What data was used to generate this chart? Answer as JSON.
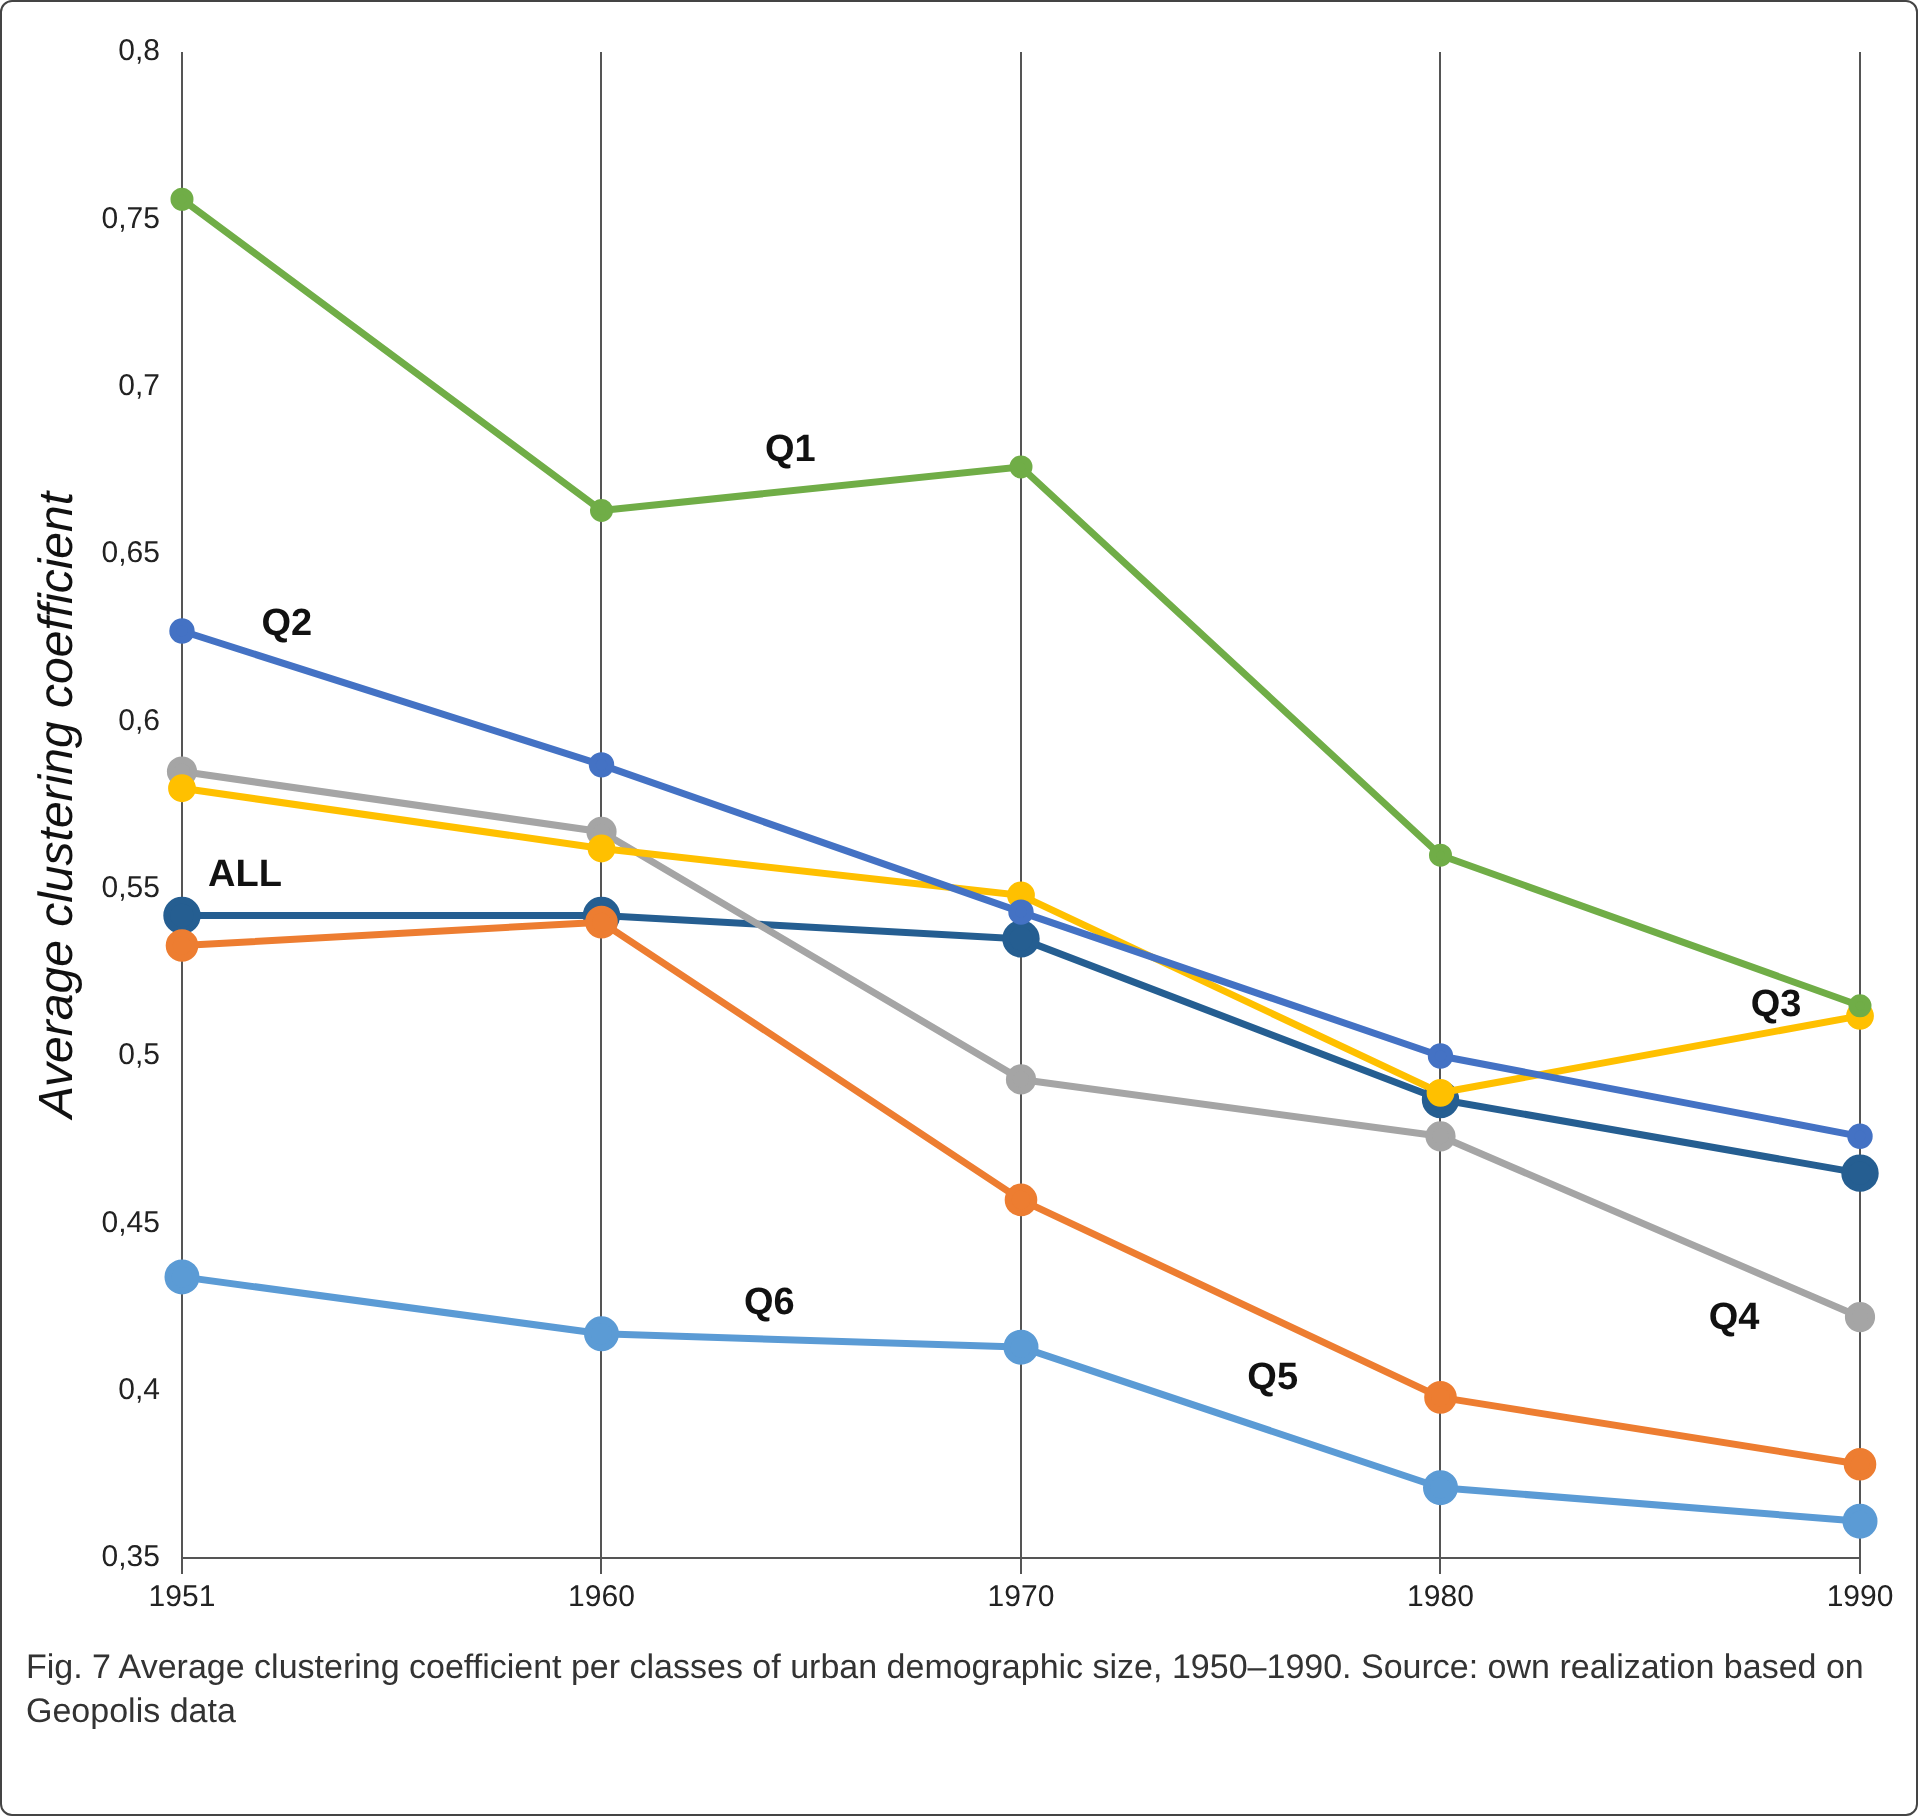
{
  "chart_data": {
    "type": "line",
    "ylabel": "Average clustering coefficient",
    "categories": [
      "1951",
      "1960",
      "1970",
      "1980",
      "1990"
    ],
    "series": [
      {
        "name": "Q1",
        "color": "#70ad47",
        "values": [
          0.756,
          0.663,
          0.676,
          0.56,
          0.515
        ]
      },
      {
        "name": "Q2",
        "color": "#4472c4",
        "values": [
          0.627,
          0.587,
          0.543,
          0.5,
          0.476
        ]
      },
      {
        "name": "Q3",
        "color": "#ffc000",
        "values": [
          0.58,
          0.562,
          0.548,
          0.489,
          0.512
        ]
      },
      {
        "name": "Q4",
        "color": "#a5a5a5",
        "values": [
          0.585,
          0.567,
          0.493,
          0.476,
          0.422
        ]
      },
      {
        "name": "Q5",
        "color": "#ed7d31",
        "values": [
          0.533,
          0.54,
          0.457,
          0.398,
          0.378
        ]
      },
      {
        "name": "Q6",
        "color": "#5b9bd5",
        "values": [
          0.434,
          0.417,
          0.413,
          0.371,
          0.361
        ]
      },
      {
        "name": "ALL",
        "color": "#255e91",
        "values": [
          0.542,
          0.542,
          0.535,
          0.487,
          0.465
        ]
      }
    ],
    "ylim": [
      0.35,
      0.8
    ],
    "yticks": [
      {
        "value": 0.35,
        "label": "0,35"
      },
      {
        "value": 0.4,
        "label": "0,4"
      },
      {
        "value": 0.45,
        "label": "0,45"
      },
      {
        "value": 0.5,
        "label": "0,5"
      },
      {
        "value": 0.55,
        "label": "0,55"
      },
      {
        "value": 0.6,
        "label": "0,6"
      },
      {
        "value": 0.65,
        "label": "0,65"
      },
      {
        "value": 0.7,
        "label": "0,7"
      },
      {
        "value": 0.75,
        "label": "0,75"
      },
      {
        "value": 0.8,
        "label": "0,8"
      }
    ],
    "grid": "x",
    "legend": false,
    "marker": "circle",
    "line_style": "solid",
    "annotations": [
      "Fig. 7 Average clustering coefficient per classes of urban demographic size, 1950–1990. Source: own realization based on Geopolis data"
    ]
  }
}
